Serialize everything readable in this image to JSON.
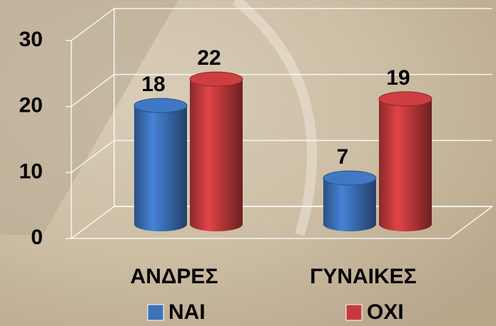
{
  "chart_data": {
    "type": "bar3d",
    "categories": [
      "ΑΝΔΡΕΣ",
      "ΓΥΝΑΙΚΕΣ"
    ],
    "series": [
      {
        "name": "ΝΑΙ",
        "color": "#3d72bb",
        "values": [
          18,
          7
        ]
      },
      {
        "name": "ΟΧΙ",
        "color": "#c43b3e",
        "values": [
          22,
          19
        ]
      }
    ],
    "ylim": [
      0,
      30
    ],
    "yticks": [
      0,
      10,
      20,
      30
    ],
    "grid": true,
    "legend": "bottom"
  }
}
